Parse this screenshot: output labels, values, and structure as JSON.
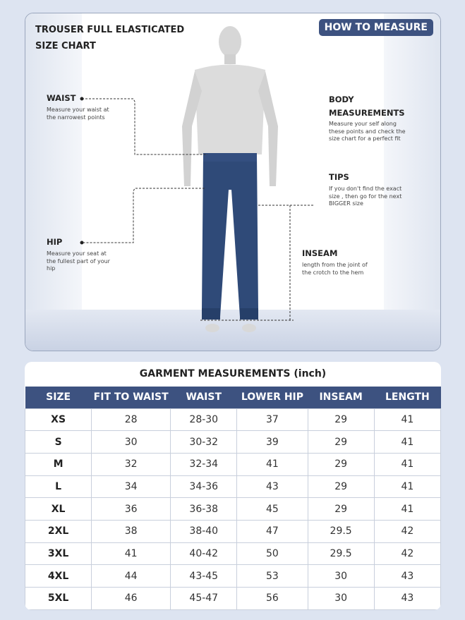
{
  "header": {
    "title_line1": "TROUSER FULL ELASTICATED",
    "title_line2": "SIZE CHART",
    "how_to_measure": "HOW TO MEASURE"
  },
  "annotations": {
    "waist": {
      "label": "WAIST",
      "text": "Measure your waist at the narrowest points"
    },
    "hip": {
      "label": "HIP",
      "text": "Measure your seat at the fullest part of your hip"
    },
    "body": {
      "label_line1": "BODY",
      "label_line2": "MEASUREMENTS",
      "text": "Measure your self along these points and check the size chart for a perfect fit"
    },
    "tips": {
      "label": "TIPS",
      "text": "If you don't find the exact size , then go for the next BIGGER size"
    },
    "inseam": {
      "label": "INSEAM",
      "text": "length from the joint of the crotch to the hem"
    }
  },
  "table": {
    "title": "GARMENT MEASUREMENTS (inch)",
    "columns": [
      "SIZE",
      "FIT TO WAIST",
      "WAIST",
      "LOWER HIP",
      "INSEAM",
      "LENGTH"
    ],
    "rows": [
      [
        "XS",
        "28",
        "28-30",
        "37",
        "29",
        "41"
      ],
      [
        "S",
        "30",
        "30-32",
        "39",
        "29",
        "41"
      ],
      [
        "M",
        "32",
        "32-34",
        "41",
        "29",
        "41"
      ],
      [
        "L",
        "34",
        "34-36",
        "43",
        "29",
        "41"
      ],
      [
        "XL",
        "36",
        "36-38",
        "45",
        "29",
        "41"
      ],
      [
        "2XL",
        "38",
        "38-40",
        "47",
        "29.5",
        "42"
      ],
      [
        "3XL",
        "41",
        "40-42",
        "50",
        "29.5",
        "42"
      ],
      [
        "4XL",
        "44",
        "43-45",
        "53",
        "30",
        "43"
      ],
      [
        "5XL",
        "46",
        "45-47",
        "56",
        "30",
        "43"
      ]
    ]
  },
  "colors": {
    "accent": "#3d5280",
    "background": "#dde4f1",
    "pants": "#2f4a78"
  }
}
